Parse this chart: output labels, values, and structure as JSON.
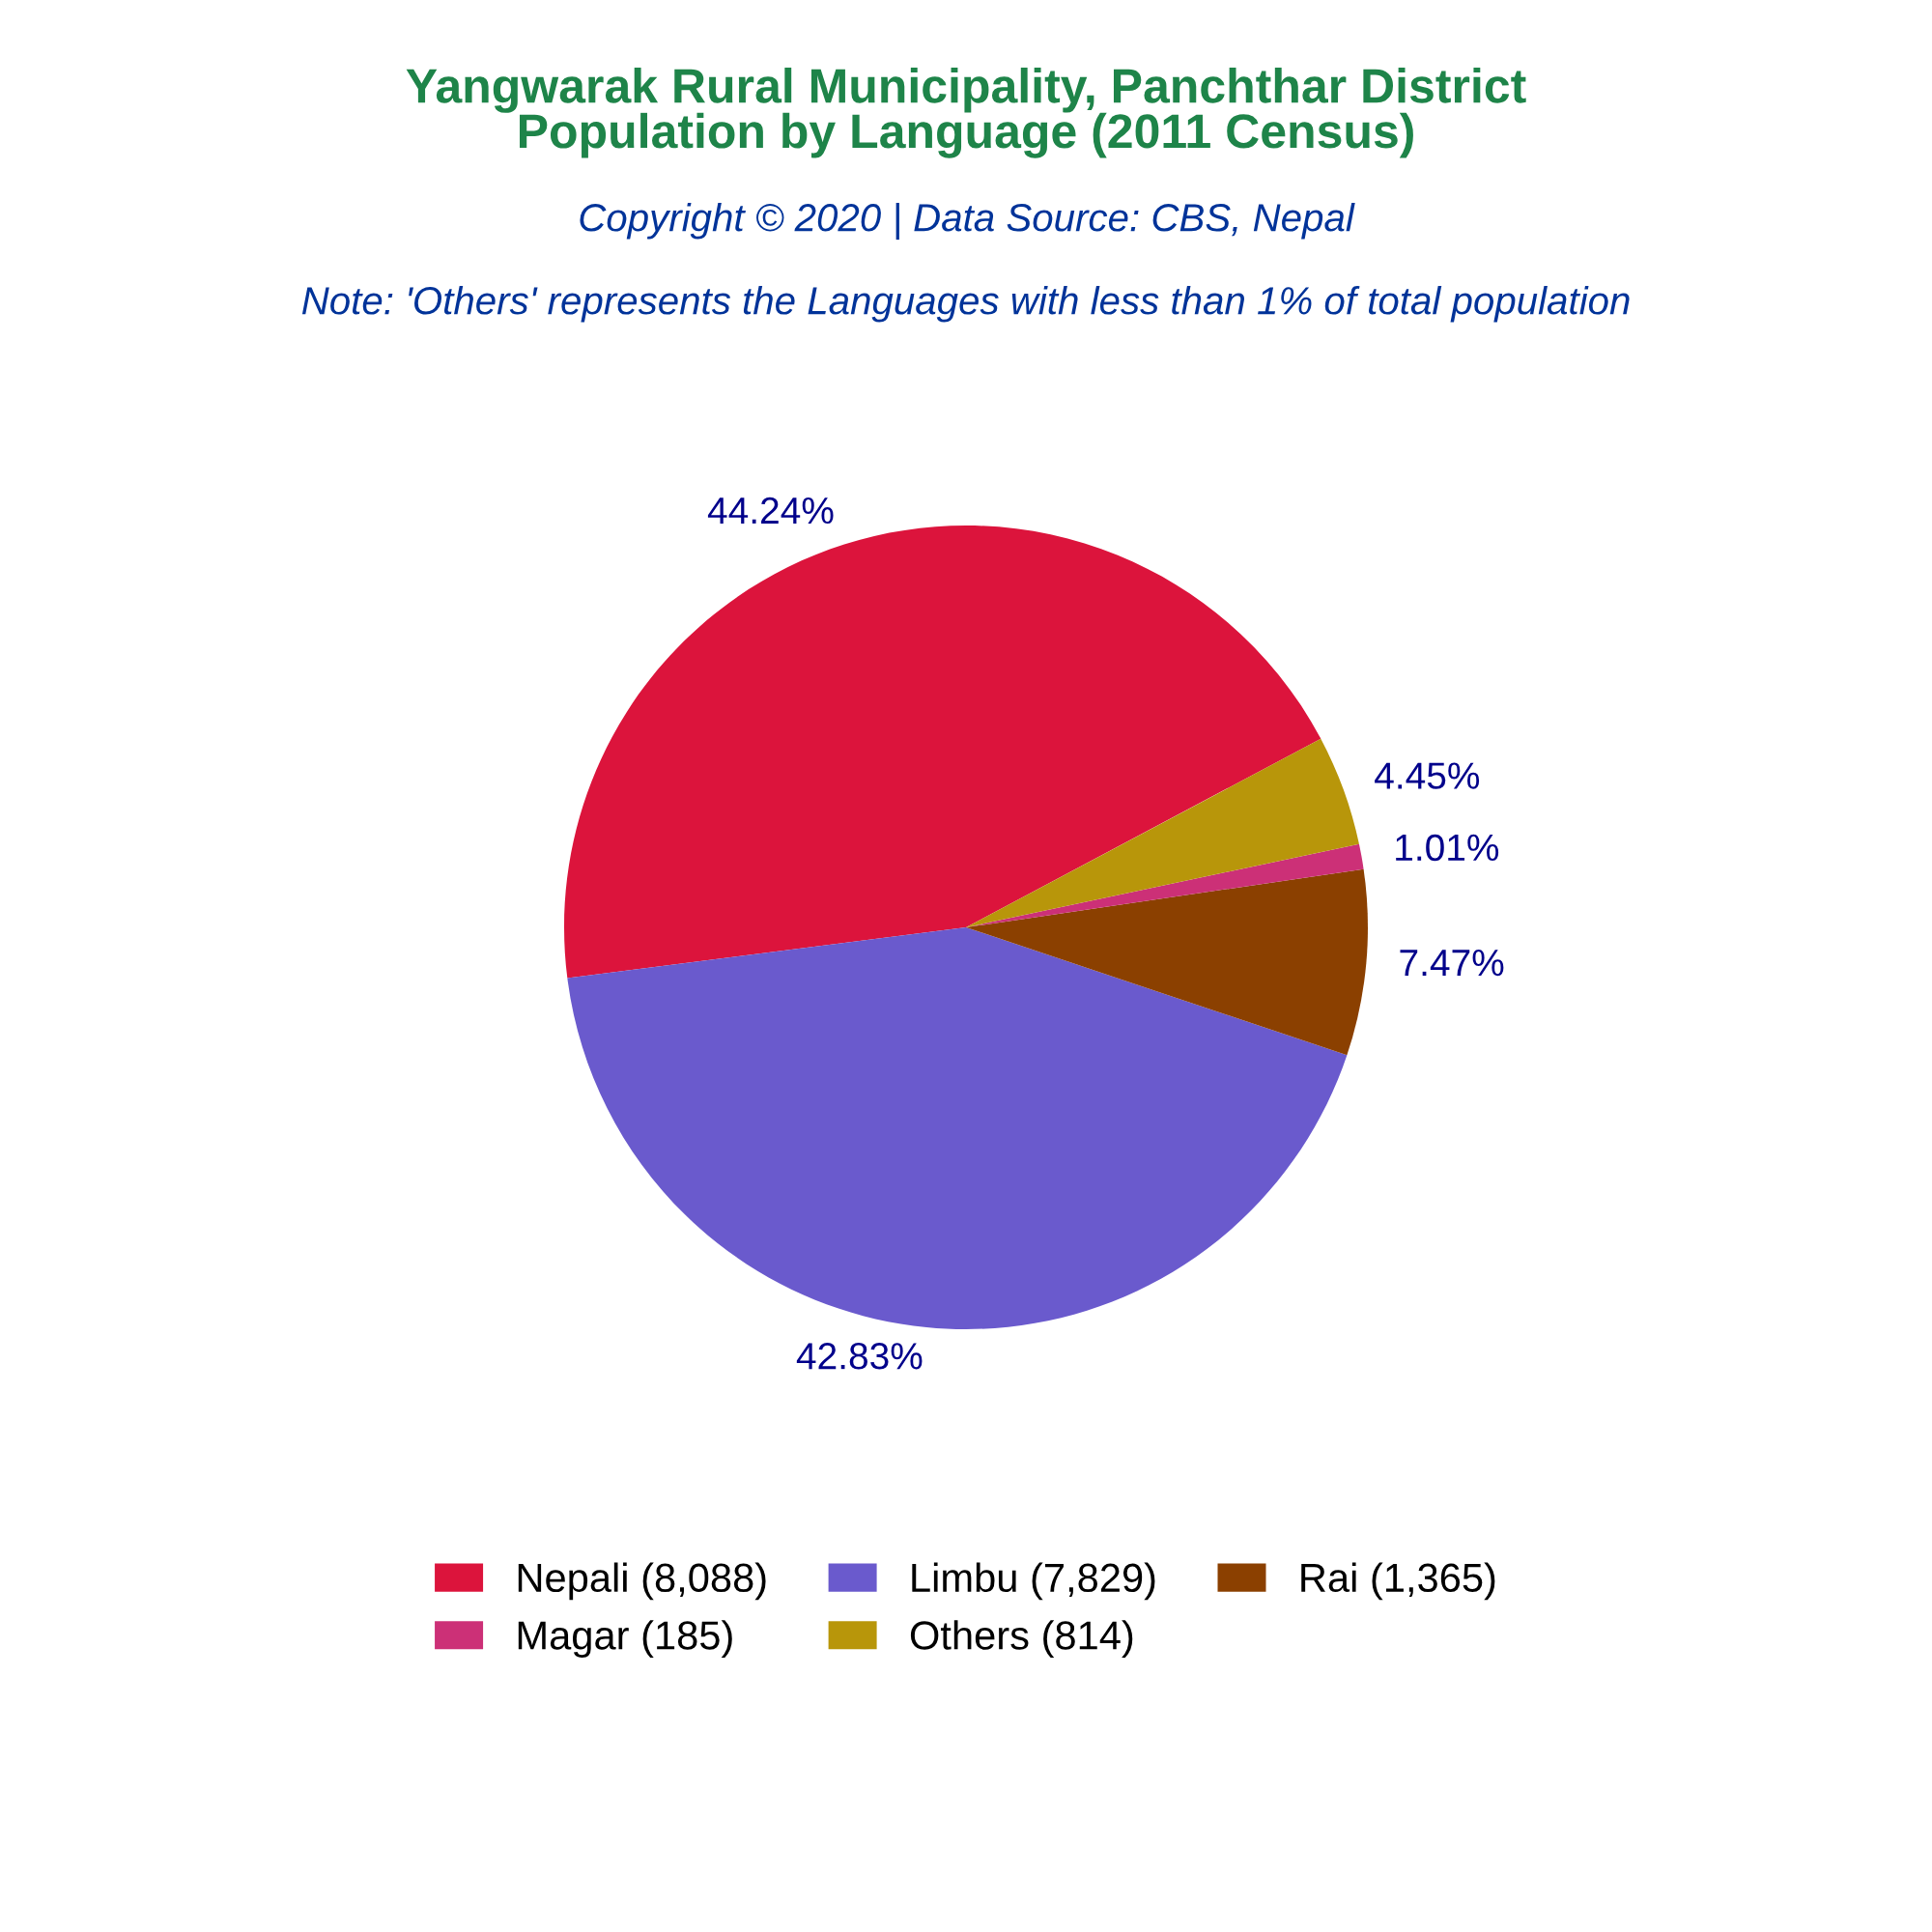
{
  "chart_data": {
    "type": "pie",
    "title": "Yangwarak Rural Municipality, Panchthar District\nPopulation by Language (2011 Census)",
    "subtitle": "Copyright © 2020 | Data Source: CBS, Nepal",
    "annotations": [
      "Note: 'Others' represents the Languages with less than 1% of total population"
    ],
    "categories": [
      "Nepali (8,088)",
      "Limbu (7,829)",
      "Rai (1,365)",
      "Magar (185)",
      "Others (814)"
    ],
    "values": [
      44.24,
      42.83,
      7.47,
      1.01,
      4.45
    ],
    "value_labels": [
      "44.24%",
      "42.83%",
      "7.47%",
      "1.01%",
      "4.45%"
    ],
    "colors": [
      "#dc143c",
      "#6a5acd",
      "#8b4000",
      "#cc3077",
      "#b8960a"
    ],
    "legend": "bottom"
  }
}
